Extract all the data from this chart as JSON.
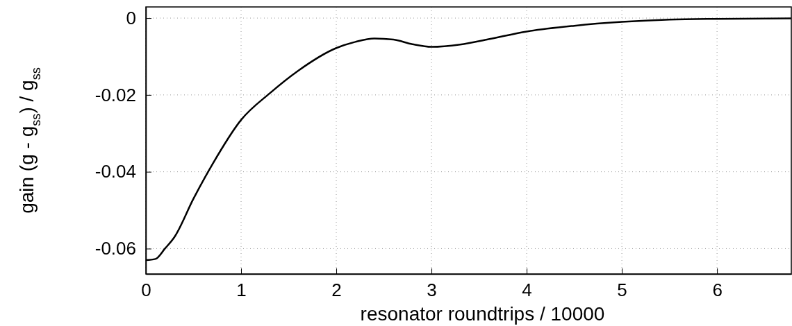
{
  "chart_data": {
    "type": "line",
    "xlabel": "resonator roundtrips / 10000",
    "ylabel": "gain (g - g$_{ss}$) / g$_{ss}$",
    "xlim": [
      0,
      6.78
    ],
    "xticks": [
      0,
      1,
      2,
      3,
      4,
      5,
      6
    ],
    "ylim": [
      -0.0666,
      0.0029
    ],
    "yticks": [
      -0.06,
      -0.04,
      -0.02,
      0
    ],
    "grid": true,
    "series": [
      {
        "color": "#000000",
        "x": [
          0,
          0.1,
          0.2,
          0.3,
          0.5,
          0.7,
          1.0,
          1.3,
          1.6,
          2.0,
          2.2,
          2.4,
          2.6,
          2.8,
          3.0,
          3.3,
          3.6,
          4.0,
          4.5,
          5.0,
          5.5,
          6.0,
          6.78
        ],
        "values": [
          -0.063,
          -0.0627,
          -0.06,
          -0.057,
          -0.047,
          -0.038,
          -0.0265,
          -0.0196,
          -0.0137,
          -0.0078,
          -0.0062,
          -0.0053,
          -0.0056,
          -0.0068,
          -0.0075,
          -0.0069,
          -0.0055,
          -0.0035,
          -0.002,
          -0.001,
          -0.0004,
          -0.0002,
          -0.0001
        ]
      }
    ]
  }
}
